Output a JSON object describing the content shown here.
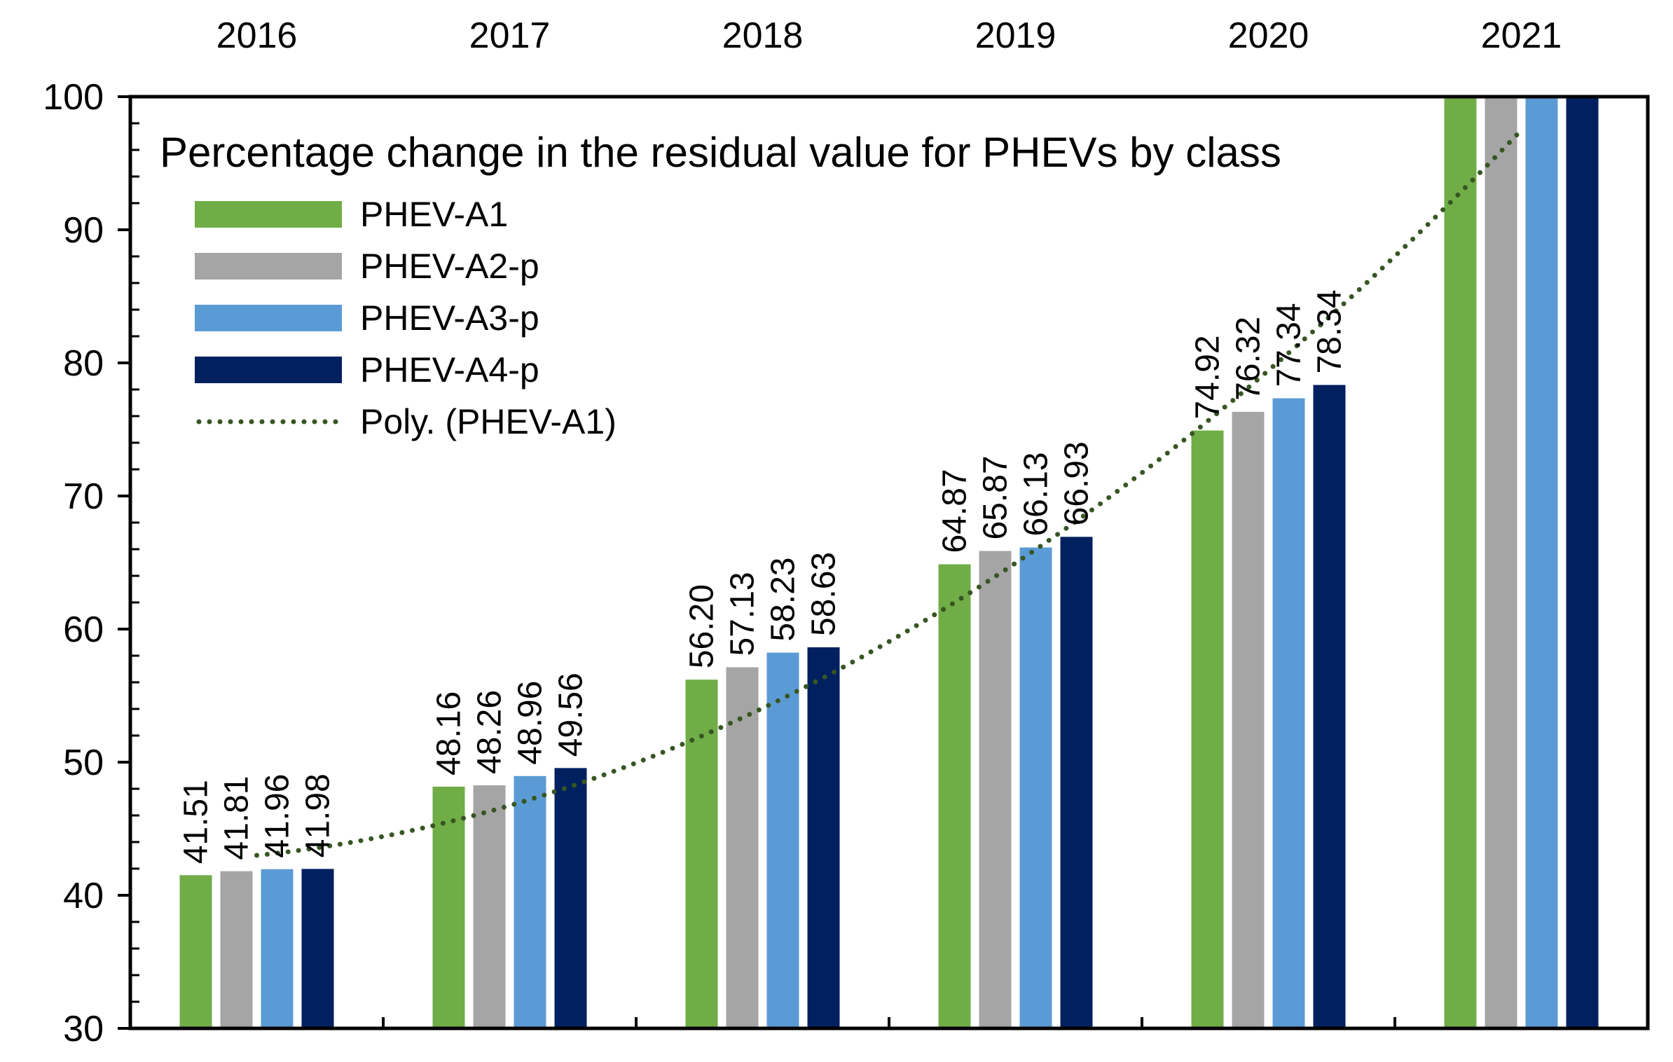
{
  "chart_data": {
    "type": "bar",
    "title": "Percentage change in the residual value for PHEVs by class",
    "categories": [
      "2016",
      "2017",
      "2018",
      "2019",
      "2020",
      "2021"
    ],
    "x_axis_position": "top",
    "ylim": [
      30,
      100
    ],
    "y_ticks": [
      30,
      40,
      50,
      60,
      70,
      80,
      90,
      100
    ],
    "y_minor_step": 2,
    "grid": false,
    "legend_position": "top-left",
    "series": [
      {
        "name": "PHEV-A1",
        "color": "#70AD47",
        "values": [
          41.51,
          48.16,
          56.2,
          64.87,
          74.92,
          100
        ],
        "labels": [
          "41.51",
          "48.16",
          "56.20",
          "64.87",
          "74.92",
          ""
        ]
      },
      {
        "name": "PHEV-A2-p",
        "color": "#A5A5A5",
        "values": [
          41.81,
          48.26,
          57.13,
          65.87,
          76.32,
          100
        ],
        "labels": [
          "41.81",
          "48.26",
          "57.13",
          "65.87",
          "76.32",
          ""
        ]
      },
      {
        "name": "PHEV-A3-p",
        "color": "#5B9BD5",
        "values": [
          41.96,
          48.96,
          58.23,
          66.13,
          77.34,
          100
        ],
        "labels": [
          "41.96",
          "48.96",
          "58.23",
          "66.13",
          "77.34",
          ""
        ]
      },
      {
        "name": "PHEV-A4-p",
        "color": "#002060",
        "values": [
          41.98,
          49.56,
          58.63,
          66.93,
          78.34,
          100
        ],
        "labels": [
          "41.98",
          "49.56",
          "58.63",
          "66.93",
          "78.34",
          ""
        ]
      }
    ],
    "trendline": {
      "name": "Poly. (PHEV-A1)",
      "type": "polynomial",
      "of_series": "PHEV-A1",
      "color": "#375623",
      "style": "dotted"
    }
  }
}
